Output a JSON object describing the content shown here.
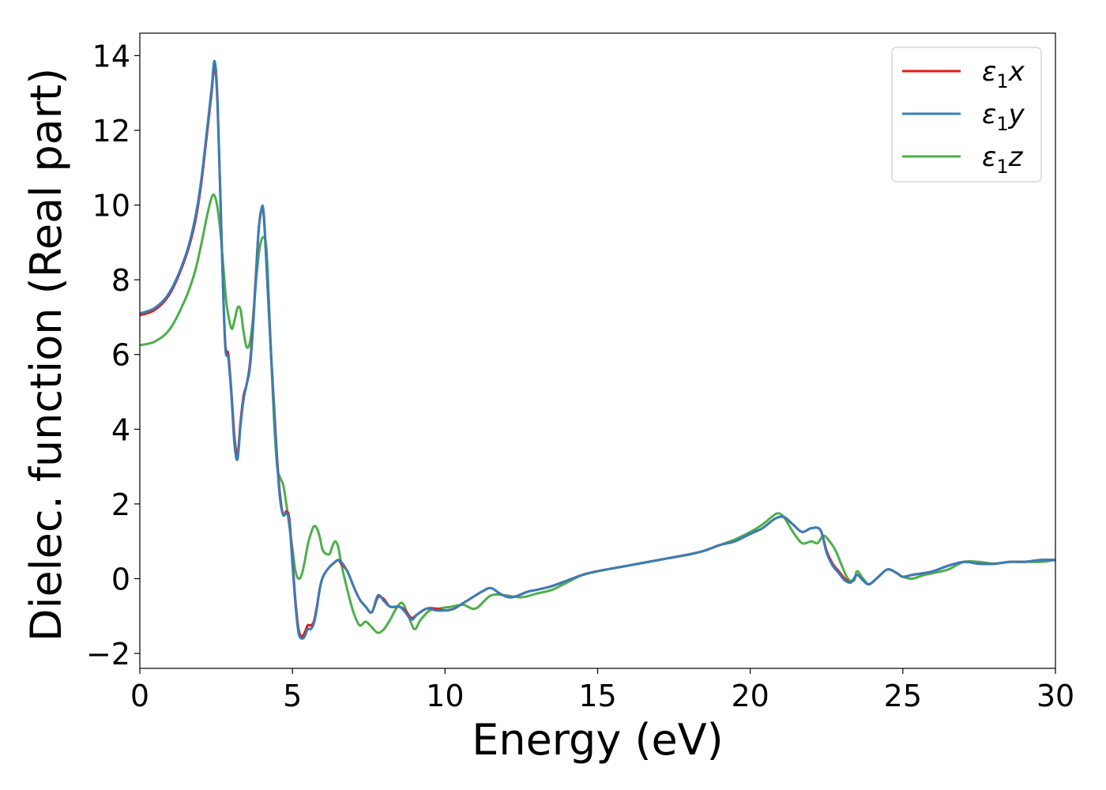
{
  "chart_data": {
    "type": "line",
    "title": "",
    "xlabel": "Energy (eV)",
    "ylabel": "Dielec. function (Real part)",
    "xlim": [
      0,
      30
    ],
    "ylim": [
      -2.4,
      14.6
    ],
    "xticks": [
      0,
      5,
      10,
      15,
      20,
      25,
      30
    ],
    "yticks": [
      -2,
      0,
      2,
      4,
      6,
      8,
      10,
      12,
      14
    ],
    "xtick_labels": [
      "0",
      "5",
      "10",
      "15",
      "20",
      "25",
      "30"
    ],
    "ytick_labels": [
      "−2",
      "0",
      "2",
      "4",
      "6",
      "8",
      "10",
      "12",
      "14"
    ],
    "grid": false,
    "legend_position": "top-right",
    "series": [
      {
        "name": "ε₁x",
        "legend": {
          "base": "ε",
          "sub": "1",
          "tail": "x"
        },
        "color": "#e41a1c",
        "x": [
          0,
          0.5,
          1.0,
          1.5,
          1.8,
          2.0,
          2.2,
          2.35,
          2.45,
          2.55,
          2.7,
          2.8,
          2.9,
          3.0,
          3.1,
          3.2,
          3.3,
          3.4,
          3.5,
          3.6,
          3.7,
          3.8,
          3.9,
          4.0,
          4.05,
          4.1,
          4.2,
          4.3,
          4.4,
          4.5,
          4.6,
          4.7,
          4.8,
          4.9,
          5.0,
          5.1,
          5.2,
          5.3,
          5.4,
          5.5,
          5.6,
          5.7,
          5.8,
          5.9,
          6.0,
          6.2,
          6.4,
          6.5,
          6.6,
          6.8,
          7.0,
          7.2,
          7.4,
          7.6,
          7.8,
          8.0,
          8.2,
          8.5,
          8.7,
          8.9,
          9.1,
          9.4,
          9.7,
          10.0,
          10.3,
          10.6,
          10.9,
          11.2,
          11.5,
          11.8,
          12.1,
          12.4,
          12.7,
          13.0,
          13.5,
          14.0,
          14.5,
          15.0,
          16.0,
          17.0,
          18.0,
          18.5,
          19.0,
          19.5,
          20.0,
          20.4,
          20.8,
          21.1,
          21.4,
          21.7,
          22.0,
          22.3,
          22.5,
          22.7,
          22.9,
          23.1,
          23.3,
          23.5,
          23.7,
          23.9,
          24.2,
          24.5,
          24.8,
          25.0,
          25.3,
          25.7,
          26.0,
          26.5,
          27.0,
          27.5,
          28.0,
          28.5,
          29.0,
          29.5,
          30.0
        ],
        "y": [
          7.05,
          7.2,
          7.65,
          8.6,
          9.5,
          10.5,
          11.9,
          13.0,
          13.7,
          12.6,
          8.5,
          6.3,
          6.0,
          5.0,
          3.8,
          3.3,
          4.2,
          4.9,
          5.2,
          5.7,
          6.7,
          8.1,
          9.4,
          9.9,
          9.8,
          9.2,
          7.6,
          6.0,
          4.6,
          3.2,
          2.2,
          1.7,
          1.8,
          1.6,
          0.5,
          -0.6,
          -1.35,
          -1.55,
          -1.45,
          -1.25,
          -1.25,
          -1.15,
          -0.75,
          -0.25,
          0.05,
          0.3,
          0.45,
          0.5,
          0.4,
          0.2,
          -0.2,
          -0.55,
          -0.75,
          -0.9,
          -0.5,
          -0.55,
          -0.75,
          -0.75,
          -0.85,
          -1.05,
          -0.95,
          -0.8,
          -0.8,
          -0.85,
          -0.8,
          -0.65,
          -0.5,
          -0.35,
          -0.25,
          -0.4,
          -0.5,
          -0.45,
          -0.35,
          -0.3,
          -0.2,
          -0.05,
          0.1,
          0.2,
          0.35,
          0.5,
          0.65,
          0.75,
          0.9,
          1.0,
          1.2,
          1.35,
          1.6,
          1.65,
          1.45,
          1.25,
          1.35,
          1.3,
          0.75,
          0.4,
          0.2,
          0.0,
          -0.1,
          0.1,
          -0.05,
          -0.15,
          0.05,
          0.25,
          0.15,
          0.05,
          0.1,
          0.15,
          0.2,
          0.35,
          0.45,
          0.4,
          0.4,
          0.45,
          0.45,
          0.5,
          0.5
        ]
      },
      {
        "name": "ε₁y",
        "legend": {
          "base": "ε",
          "sub": "1",
          "tail": "y"
        },
        "color": "#377eb8",
        "x": [
          0,
          0.5,
          1.0,
          1.5,
          1.8,
          2.0,
          2.2,
          2.35,
          2.45,
          2.55,
          2.7,
          2.8,
          2.9,
          3.0,
          3.1,
          3.2,
          3.3,
          3.4,
          3.5,
          3.6,
          3.7,
          3.8,
          3.9,
          4.0,
          4.05,
          4.1,
          4.2,
          4.3,
          4.4,
          4.5,
          4.6,
          4.7,
          4.8,
          4.9,
          5.0,
          5.1,
          5.2,
          5.3,
          5.4,
          5.5,
          5.6,
          5.7,
          5.8,
          5.9,
          6.0,
          6.2,
          6.4,
          6.5,
          6.6,
          6.8,
          7.0,
          7.2,
          7.4,
          7.6,
          7.8,
          8.0,
          8.2,
          8.5,
          8.7,
          8.9,
          9.1,
          9.4,
          9.7,
          10.0,
          10.3,
          10.6,
          10.9,
          11.2,
          11.5,
          11.8,
          12.1,
          12.4,
          12.7,
          13.0,
          13.5,
          14.0,
          14.5,
          15.0,
          16.0,
          17.0,
          18.0,
          18.5,
          19.0,
          19.5,
          20.0,
          20.4,
          20.8,
          21.1,
          21.4,
          21.7,
          22.0,
          22.3,
          22.5,
          22.7,
          22.9,
          23.1,
          23.3,
          23.5,
          23.7,
          23.9,
          24.2,
          24.5,
          24.8,
          25.0,
          25.3,
          25.7,
          26.0,
          26.5,
          27.0,
          27.5,
          28.0,
          28.5,
          29.0,
          29.5,
          30.0
        ],
        "y": [
          7.1,
          7.25,
          7.7,
          8.65,
          9.6,
          10.6,
          12.0,
          13.1,
          13.85,
          12.7,
          8.5,
          6.2,
          5.9,
          4.9,
          3.6,
          3.2,
          4.1,
          4.8,
          5.2,
          5.6,
          6.6,
          8.0,
          9.4,
          9.95,
          9.85,
          9.25,
          7.6,
          6.0,
          4.5,
          3.1,
          2.1,
          1.7,
          1.75,
          1.5,
          0.4,
          -0.7,
          -1.45,
          -1.6,
          -1.55,
          -1.35,
          -1.35,
          -1.2,
          -0.8,
          -0.25,
          0.05,
          0.3,
          0.45,
          0.5,
          0.45,
          0.2,
          -0.2,
          -0.55,
          -0.75,
          -0.9,
          -0.45,
          -0.6,
          -0.75,
          -0.75,
          -0.9,
          -1.1,
          -0.95,
          -0.8,
          -0.85,
          -0.85,
          -0.8,
          -0.65,
          -0.5,
          -0.35,
          -0.25,
          -0.4,
          -0.5,
          -0.45,
          -0.35,
          -0.3,
          -0.2,
          -0.05,
          0.1,
          0.2,
          0.35,
          0.5,
          0.65,
          0.75,
          0.9,
          1.0,
          1.2,
          1.35,
          1.6,
          1.65,
          1.45,
          1.25,
          1.35,
          1.3,
          0.7,
          0.35,
          0.15,
          -0.05,
          -0.1,
          0.1,
          -0.05,
          -0.15,
          0.05,
          0.25,
          0.15,
          0.05,
          0.1,
          0.15,
          0.2,
          0.35,
          0.45,
          0.4,
          0.4,
          0.45,
          0.45,
          0.5,
          0.5
        ]
      },
      {
        "name": "ε₁z",
        "legend": {
          "base": "ε",
          "sub": "1",
          "tail": "z"
        },
        "color": "#4daf4a",
        "x": [
          0,
          0.5,
          1.0,
          1.5,
          1.8,
          2.0,
          2.2,
          2.35,
          2.45,
          2.55,
          2.65,
          2.75,
          2.85,
          3.0,
          3.1,
          3.2,
          3.3,
          3.4,
          3.5,
          3.6,
          3.7,
          3.8,
          3.9,
          4.0,
          4.1,
          4.15,
          4.2,
          4.3,
          4.4,
          4.5,
          4.6,
          4.7,
          4.8,
          4.9,
          5.0,
          5.1,
          5.2,
          5.3,
          5.4,
          5.5,
          5.6,
          5.7,
          5.8,
          5.9,
          6.0,
          6.2,
          6.3,
          6.4,
          6.5,
          6.6,
          6.8,
          7.0,
          7.2,
          7.4,
          7.6,
          7.8,
          8.0,
          8.2,
          8.4,
          8.6,
          8.8,
          9.0,
          9.2,
          9.5,
          9.8,
          10.2,
          10.6,
          11.0,
          11.5,
          12.0,
          12.5,
          13.0,
          13.5,
          14.0,
          14.5,
          15.0,
          16.0,
          17.0,
          18.0,
          18.5,
          19.0,
          19.5,
          20.0,
          20.4,
          20.7,
          20.9,
          21.1,
          21.4,
          21.7,
          22.0,
          22.2,
          22.4,
          22.6,
          22.8,
          23.0,
          23.2,
          23.4,
          23.5,
          23.7,
          23.9,
          24.2,
          24.5,
          24.8,
          25.0,
          25.3,
          25.7,
          26.0,
          26.5,
          27.0,
          27.5,
          28.0,
          28.5,
          29.0,
          29.5,
          30.0
        ],
        "y": [
          6.25,
          6.35,
          6.7,
          7.5,
          8.2,
          8.9,
          9.7,
          10.2,
          10.25,
          9.9,
          9.2,
          8.2,
          7.3,
          6.7,
          6.9,
          7.25,
          7.2,
          6.6,
          6.2,
          6.3,
          6.9,
          7.9,
          8.7,
          9.1,
          9.1,
          8.8,
          8.0,
          6.0,
          4.2,
          3.0,
          2.7,
          2.5,
          2.0,
          1.4,
          0.8,
          0.2,
          0.0,
          0.1,
          0.45,
          0.9,
          1.2,
          1.4,
          1.35,
          1.1,
          0.75,
          0.65,
          0.85,
          1.0,
          0.85,
          0.4,
          -0.3,
          -0.9,
          -1.25,
          -1.15,
          -1.3,
          -1.45,
          -1.35,
          -1.1,
          -0.8,
          -0.65,
          -1.0,
          -1.35,
          -1.1,
          -0.85,
          -0.8,
          -0.75,
          -0.7,
          -0.8,
          -0.45,
          -0.45,
          -0.5,
          -0.4,
          -0.3,
          -0.1,
          0.1,
          0.2,
          0.35,
          0.5,
          0.65,
          0.75,
          0.9,
          1.05,
          1.25,
          1.45,
          1.65,
          1.75,
          1.65,
          1.25,
          0.95,
          1.0,
          0.95,
          1.15,
          1.0,
          0.75,
          0.35,
          0.0,
          -0.05,
          0.2,
          0.0,
          -0.15,
          0.05,
          0.25,
          0.15,
          0.05,
          0.0,
          0.1,
          0.15,
          0.25,
          0.45,
          0.45,
          0.4,
          0.45,
          0.45,
          0.45,
          0.5
        ]
      }
    ]
  }
}
